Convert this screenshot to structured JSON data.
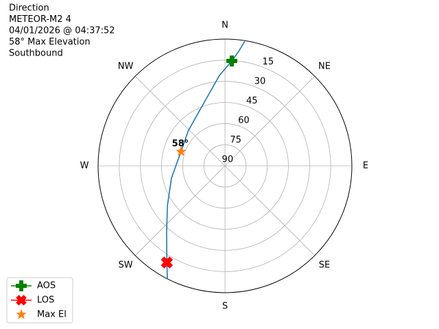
{
  "chart_data": {
    "type": "polar",
    "title_lines": [
      "Direction",
      "METEOR-M2 4",
      "04/01/2026 @ 04:37:52",
      "58° Max Elevation",
      "Southbound"
    ],
    "xticks": [
      {
        "value": 0,
        "label": "N"
      },
      {
        "value": 45,
        "label": "NE"
      },
      {
        "value": 90,
        "label": "E"
      },
      {
        "value": 135,
        "label": "SE"
      },
      {
        "value": 180,
        "label": "S"
      },
      {
        "value": 225,
        "label": "SW"
      },
      {
        "value": 270,
        "label": "W"
      },
      {
        "value": 315,
        "label": "NW"
      }
    ],
    "ylim": [
      90,
      0
    ],
    "yticks": [
      15,
      30,
      45,
      60,
      75,
      90
    ],
    "grid": true,
    "track": {
      "color": "#1f77b4",
      "x": [
        9,
        6.8,
        3.7,
        356.5,
        344,
        314,
        288,
        257,
        235.4,
        221,
        211,
        207
      ],
      "values": [
        0.5,
        8.2,
        15.4,
        25.7,
        40.9,
        53.9,
        57.2,
        51,
        40.4,
        26.9,
        10,
        0
      ]
    },
    "series": [
      {
        "name": "AOS",
        "color": "#008000",
        "marker": "plus",
        "line": true,
        "x": [
          3.7
        ],
        "values": [
          15.4
        ]
      },
      {
        "name": "LOS",
        "color": "#ff0000",
        "marker": "x",
        "line": true,
        "x": [
          211
        ],
        "values": [
          10
        ]
      },
      {
        "name": "Max El",
        "color": "#ff7f0e",
        "marker": "star",
        "line": false,
        "x": [
          288
        ],
        "values": [
          57.2
        ]
      }
    ],
    "annotation": {
      "text": "58°",
      "x": 288,
      "y": 57.2
    },
    "legend": "lower left"
  }
}
